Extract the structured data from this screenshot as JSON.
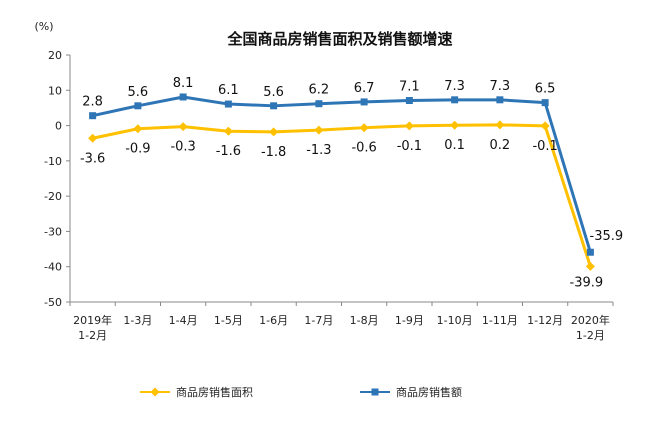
{
  "chart_data": {
    "type": "line",
    "title": "全国商品房销售面积及销售额增速",
    "unit_label": "(%)",
    "ylim": [
      -50,
      20
    ],
    "yticks": [
      20,
      10,
      0,
      -10,
      -20,
      -30,
      -40,
      -50
    ],
    "categories": [
      [
        "2019年",
        "1-2月"
      ],
      [
        "1-3月"
      ],
      [
        "1-4月"
      ],
      [
        "1-5月"
      ],
      [
        "1-6月"
      ],
      [
        "1-7月"
      ],
      [
        "1-8月"
      ],
      [
        "1-9月"
      ],
      [
        "1-10月"
      ],
      [
        "1-11月"
      ],
      [
        "1-12月"
      ],
      [
        "2020年",
        "1-2月"
      ]
    ],
    "series": [
      {
        "name": "商品房销售面积",
        "color": "#FFC000",
        "marker": "diamond",
        "values": [
          -3.6,
          -0.9,
          -0.3,
          -1.6,
          -1.8,
          -1.3,
          -0.6,
          -0.1,
          0.1,
          0.2,
          -0.1,
          -39.9
        ],
        "labels": [
          "-3.6",
          "-0.9",
          "-0.3",
          "-1.6",
          "-1.8",
          "-1.3",
          "-0.6",
          "-0.1",
          "0.1",
          "0.2",
          "-0.1",
          "-39.9"
        ]
      },
      {
        "name": "商品房销售额",
        "color": "#2E75B6",
        "marker": "square",
        "values": [
          2.8,
          5.6,
          8.1,
          6.1,
          5.6,
          6.2,
          6.7,
          7.1,
          7.3,
          7.3,
          6.5,
          -35.9
        ],
        "labels": [
          "2.8",
          "5.6",
          "8.1",
          "6.1",
          "5.6",
          "6.2",
          "6.7",
          "7.1",
          "7.3",
          "7.3",
          "6.5",
          "-35.9"
        ]
      }
    ],
    "grid": false,
    "legend_position": "bottom"
  }
}
